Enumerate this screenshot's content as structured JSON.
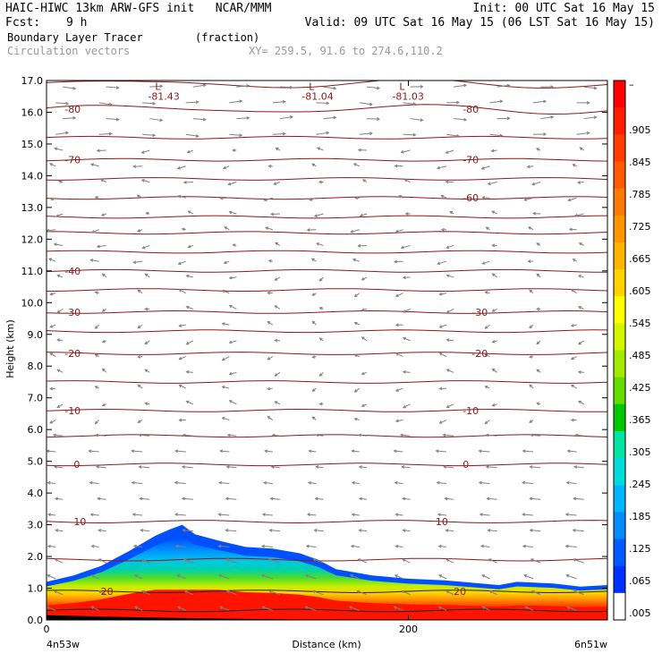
{
  "header": {
    "model_line": "HAIC-HIWC 13km ARW-GFS init   NCAR/MMM",
    "init_line": "Init: 00 UTC Sat 16 May 15",
    "fcst_label": "Fcst:",
    "fcst_value": "9 h",
    "valid_line": "Valid: 09 UTC Sat 16 May 15 (06 LST Sat 16 May 15)",
    "field_name": "Boundary Layer Tracer",
    "field_units": "(fraction)",
    "vector_label": "Circulation vectors",
    "xy_label": "XY= 259.5, 91.6 to 274.6,110.2"
  },
  "chart_data": {
    "type": "heatmap",
    "ylabel": "Height (km)",
    "xlabel": "Distance (km)",
    "x_start_label": "4n53w",
    "x_end_label": "6n51w",
    "xlim": [
      0,
      310
    ],
    "ylim": [
      0,
      17
    ],
    "x_ticks": [
      0,
      200
    ],
    "y_ticks": [
      "0.0",
      "1.0",
      "2.0",
      "3.0",
      "4.0",
      "5.0",
      "6.0",
      "7.0",
      "8.0",
      "9.0",
      "10.0",
      "11.0",
      "12.0",
      "13.0",
      "14.0",
      "15.0",
      "16.0",
      "17.0"
    ],
    "tracer_top_km": [
      [
        0,
        1.2
      ],
      [
        15,
        1.4
      ],
      [
        30,
        1.7
      ],
      [
        45,
        2.15
      ],
      [
        60,
        2.65
      ],
      [
        68,
        2.85
      ],
      [
        75,
        3.0
      ],
      [
        82,
        2.7
      ],
      [
        95,
        2.5
      ],
      [
        110,
        2.3
      ],
      [
        125,
        2.25
      ],
      [
        140,
        2.1
      ],
      [
        150,
        1.9
      ],
      [
        160,
        1.6
      ],
      [
        180,
        1.4
      ],
      [
        200,
        1.3
      ],
      [
        220,
        1.25
      ],
      [
        240,
        1.15
      ],
      [
        250,
        1.1
      ],
      [
        260,
        1.2
      ],
      [
        280,
        1.15
      ],
      [
        295,
        1.05
      ],
      [
        310,
        1.1
      ]
    ],
    "colorbar_labels": [
      "–",
      ".905",
      ".845",
      ".785",
      ".725",
      ".665",
      ".605",
      ".545",
      ".485",
      ".425",
      ".365",
      ".305",
      ".245",
      ".185",
      ".125",
      ".065",
      ".005"
    ],
    "colorbar_colors": [
      "#ff0000",
      "#ff1e00",
      "#ff3c00",
      "#ff5a00",
      "#ff7800",
      "#ff9600",
      "#ffb400",
      "#ffd200",
      "#ffff00",
      "#d2f500",
      "#a0eb00",
      "#64dc00",
      "#00c800",
      "#00e6a0",
      "#00dcdc",
      "#00b4ff",
      "#008cff",
      "#005aff",
      "#0032ff",
      "#ffffff"
    ],
    "isotherm_labels": [
      {
        "text": "-80",
        "x": 10,
        "y": 16.1
      },
      {
        "text": "-80",
        "x": 230,
        "y": 16.1
      },
      {
        "text": "-70",
        "x": 10,
        "y": 14.5
      },
      {
        "text": "-70",
        "x": 230,
        "y": 14.5
      },
      {
        "text": "-60",
        "x": 230,
        "y": 13.3
      },
      {
        "text": "-40",
        "x": 10,
        "y": 11.0
      },
      {
        "text": "-30",
        "x": 10,
        "y": 9.7
      },
      {
        "text": "-30",
        "x": 235,
        "y": 9.7
      },
      {
        "text": "-20",
        "x": 10,
        "y": 8.4
      },
      {
        "text": "-20",
        "x": 235,
        "y": 8.4
      },
      {
        "text": "-10",
        "x": 10,
        "y": 6.6
      },
      {
        "text": "-10",
        "x": 230,
        "y": 6.6
      },
      {
        "text": "0",
        "x": 15,
        "y": 4.9
      },
      {
        "text": "0",
        "x": 230,
        "y": 4.9
      },
      {
        "text": "10",
        "x": 15,
        "y": 3.1
      },
      {
        "text": "10",
        "x": 215,
        "y": 3.1
      },
      {
        "text": "20",
        "x": 30,
        "y": 0.9
      },
      {
        "text": "20",
        "x": 225,
        "y": 0.9
      }
    ],
    "lows": [
      {
        "symbol": "L",
        "value": "-81.43",
        "x": 60,
        "y": 16.7
      },
      {
        "symbol": "L",
        "value": "-81.04",
        "x": 145,
        "y": 16.7
      },
      {
        "symbol": "L",
        "value": "-81.03",
        "x": 195,
        "y": 16.7
      }
    ],
    "isotherm_heights_km": [
      0.3,
      0.9,
      1.9,
      3.1,
      4.9,
      5.8,
      6.6,
      7.5,
      8.4,
      9.1,
      9.7,
      10.4,
      11.0,
      11.6,
      12.2,
      12.7,
      13.3,
      13.9,
      14.5,
      15.2,
      16.1,
      16.9
    ]
  }
}
